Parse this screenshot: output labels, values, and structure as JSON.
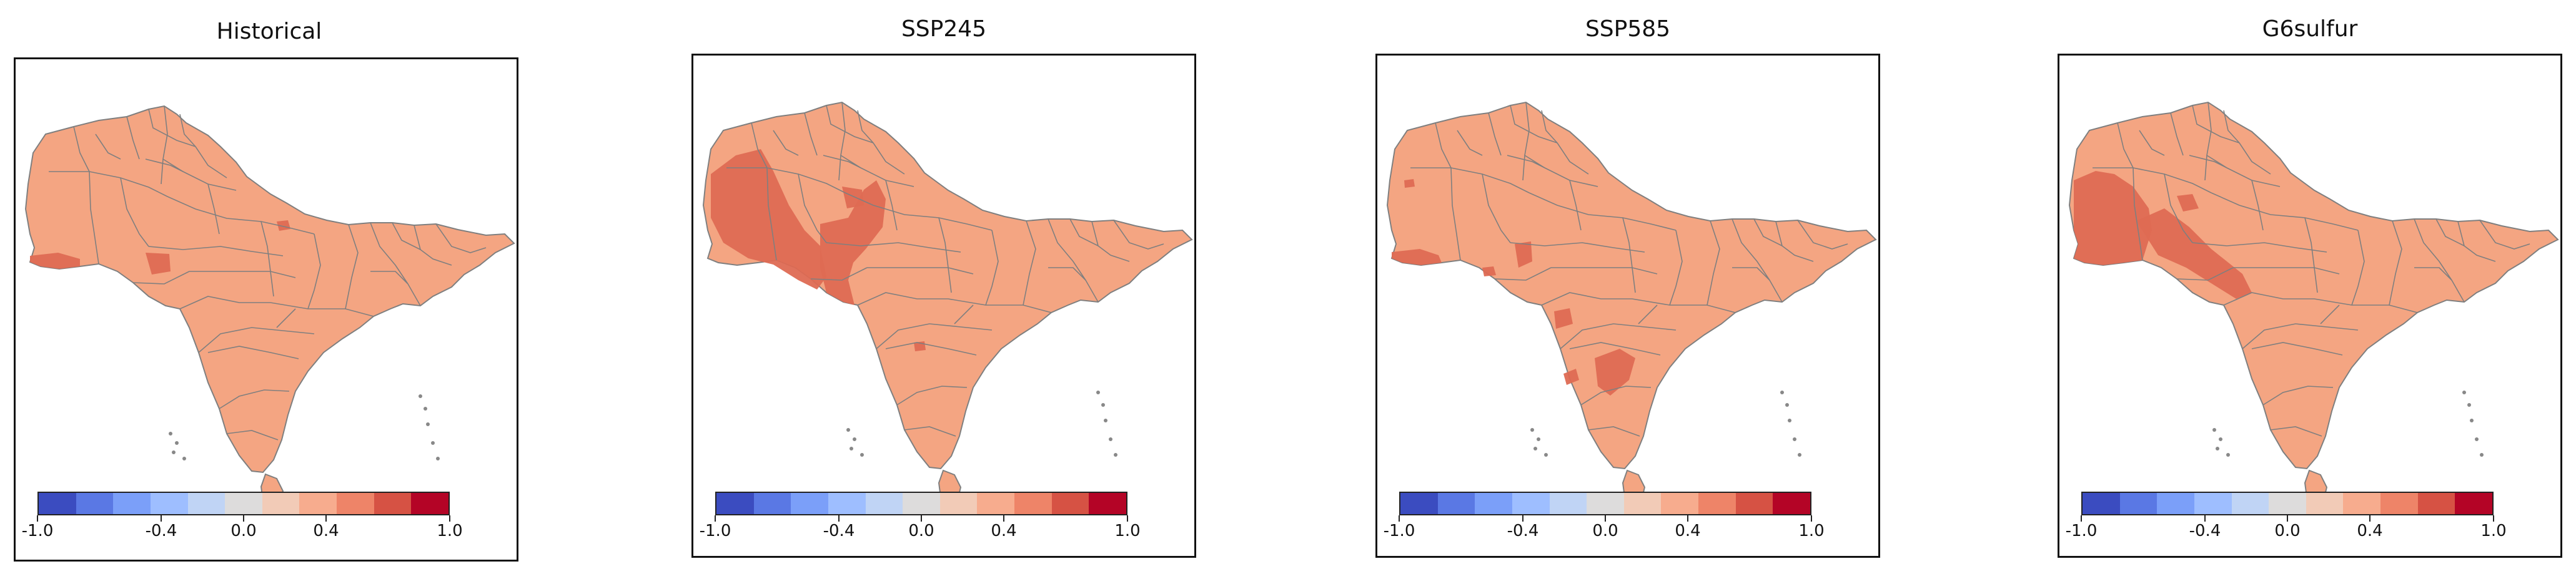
{
  "colorbar": {
    "min": -1.0,
    "max": 1.0,
    "ticks": [
      "-1.0",
      "-0.4",
      "0.0",
      "0.4",
      "1.0"
    ],
    "tick_values": [
      -1.0,
      -0.4,
      0.0,
      0.4,
      1.0
    ],
    "colors": [
      "#3b4cc0",
      "#5a78e4",
      "#7b9ff9",
      "#9ebeff",
      "#c0d4f5",
      "#dddcdc",
      "#f2cbb7",
      "#f7ac8e",
      "#ee8468",
      "#d65244",
      "#b40426"
    ]
  },
  "map_colors": {
    "base": "#f4a582",
    "mid": "#ec8a6c",
    "dark": "#de6a53",
    "border": "#7f7f7f"
  },
  "panels": [
    {
      "title": "Historical"
    },
    {
      "title": "SSP245"
    },
    {
      "title": "SSP585"
    },
    {
      "title": "G6sulfur"
    }
  ]
}
